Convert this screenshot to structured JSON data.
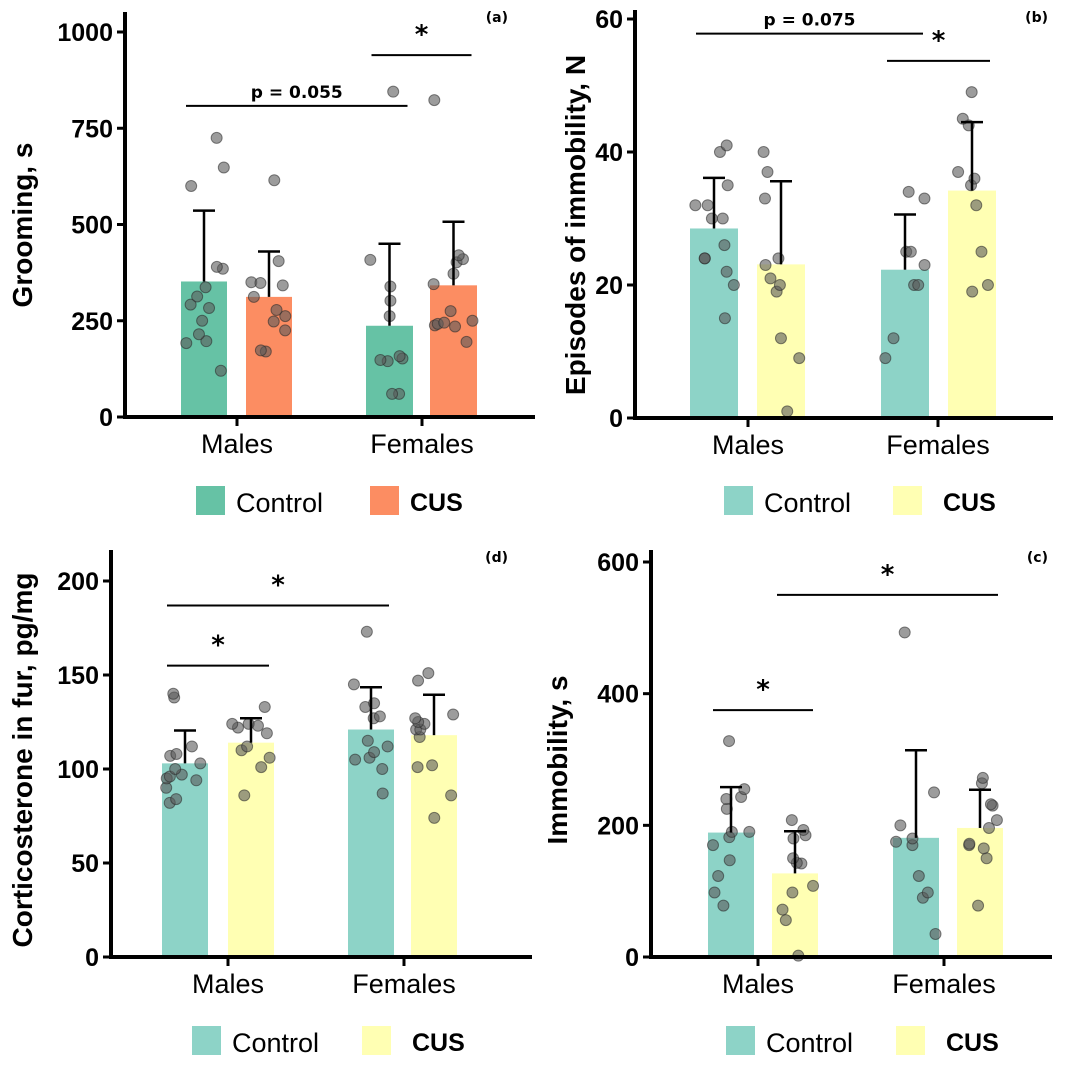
{
  "chart_data": [
    {
      "id": "a",
      "type": "bar",
      "panel_label": "(a)",
      "title": "",
      "xlabel": "",
      "ylabel": "Grooming, s",
      "ylim": [
        0,
        1050
      ],
      "yticks": [
        0,
        250,
        500,
        750,
        1000
      ],
      "categories": [
        "Males",
        "Females"
      ],
      "legend": [
        "Control",
        "CUS"
      ],
      "legend_placement": "bottom",
      "colors": {
        "Control": "#66c2a5",
        "CUS": "#fc8d62"
      },
      "series": [
        {
          "name": "Control",
          "values": [
            352,
            237
          ],
          "error_upper": [
            536,
            450
          ],
          "points": [
            [
              120,
              192,
              197,
              215,
              250,
              283,
              292,
              313,
              337,
              385,
              390,
              600,
              648,
              725
            ],
            [
              60,
              60,
              145,
              148,
              152,
              158,
              262,
              302,
              339,
              408,
              845
            ]
          ]
        },
        {
          "name": "CUS",
          "values": [
            312,
            342
          ],
          "error_upper": [
            430,
            507
          ],
          "points": [
            [
              170,
              173,
              225,
              248,
              262,
              278,
              312,
              342,
              350,
              348,
              405,
              615
            ],
            [
              195,
              235,
              238,
              242,
              245,
              250,
              275,
              345,
              372,
              402,
              410,
              420,
              823
            ]
          ]
        }
      ],
      "annotations": [
        {
          "text": "p = 0.055",
          "from": [
            "Males",
            "Control"
          ],
          "to": [
            "Females",
            "Control"
          ],
          "y": 808
        },
        {
          "text": "*",
          "from": [
            "Females",
            "Control"
          ],
          "to": [
            "Females",
            "CUS"
          ],
          "y": 940
        }
      ]
    },
    {
      "id": "b",
      "type": "bar",
      "panel_label": "(b)",
      "title": "",
      "xlabel": "",
      "ylabel": "Episodes of immobility, N",
      "ylim": [
        0,
        60
      ],
      "yticks": [
        0,
        20,
        40,
        60
      ],
      "categories": [
        "Males",
        "Females"
      ],
      "legend": [
        "Control",
        "CUS"
      ],
      "legend_placement": "bottom",
      "colors": {
        "Control": "#8dd3c7",
        "CUS": "#ffffb3"
      },
      "series": [
        {
          "name": "Control",
          "values": [
            28.5,
            22.3
          ],
          "error_upper": [
            36.1,
            30.6
          ],
          "points": [
            [
              15,
              20,
              22,
              24,
              24,
              26,
              30,
              30,
              32,
              32,
              35,
              40,
              41
            ],
            [
              9,
              12,
              20,
              20,
              23,
              25,
              25,
              33,
              34
            ]
          ]
        },
        {
          "name": "CUS",
          "values": [
            23.1,
            34.2
          ],
          "error_upper": [
            35.6,
            44.5
          ],
          "points": [
            [
              1,
              9,
              12,
              19,
              20,
              21,
              23,
              24,
              33,
              37,
              40
            ],
            [
              19,
              20,
              25,
              32,
              35,
              36,
              37,
              44,
              45,
              49
            ]
          ]
        }
      ],
      "annotations": [
        {
          "text": "p = 0.075",
          "from": [
            "Males",
            "Control"
          ],
          "to": [
            "Females",
            "Control"
          ],
          "y": 57.8
        },
        {
          "text": "*",
          "from": [
            "Females",
            "Control"
          ],
          "to": [
            "Females",
            "CUS"
          ],
          "y": 53.7
        }
      ]
    },
    {
      "id": "d",
      "type": "bar",
      "panel_label": "(d)",
      "title": "",
      "xlabel": "",
      "ylabel": "Corticosterone in fur, pg/mg",
      "ylim": [
        0,
        215
      ],
      "yticks": [
        0,
        50,
        100,
        150,
        200
      ],
      "categories": [
        "Males",
        "Females"
      ],
      "legend": [
        "Control",
        "CUS"
      ],
      "legend_placement": "bottom",
      "colors": {
        "Control": "#8dd3c7",
        "CUS": "#ffffb3"
      },
      "series": [
        {
          "name": "Control",
          "values": [
            103,
            121
          ],
          "error_upper": [
            120.5,
            143.5
          ],
          "points": [
            [
              82,
              84,
              90,
              94,
              95,
              96,
              97,
              100,
              103,
              107,
              108,
              112,
              138,
              140
            ],
            [
              87,
              100,
              105,
              106,
              109,
              112,
              115,
              127,
              128,
              133,
              135,
              145,
              173
            ]
          ]
        },
        {
          "name": "CUS",
          "values": [
            114,
            118
          ],
          "error_upper": [
            127,
            139.5
          ],
          "points": [
            [
              86,
              101,
              106,
              110,
              112,
              119,
              122,
              123,
              124,
              124,
              133
            ],
            [
              74,
              86,
              101,
              102,
              117,
              121,
              121,
              124,
              125,
              127,
              129,
              147,
              151
            ]
          ]
        }
      ],
      "annotations": [
        {
          "text": "*",
          "from": [
            "Males",
            "Control"
          ],
          "to": [
            "Females",
            "Control"
          ],
          "y": 187
        },
        {
          "text": "*",
          "from": [
            "Males",
            "Control"
          ],
          "to": [
            "Males",
            "CUS"
          ],
          "y": 155
        }
      ]
    },
    {
      "id": "c",
      "type": "bar",
      "panel_label": "(c)",
      "title": "",
      "xlabel": "",
      "ylabel": "Immobility, s",
      "ylim": [
        0,
        610
      ],
      "yticks": [
        0,
        200,
        400,
        600
      ],
      "categories": [
        "Males",
        "Females"
      ],
      "legend": [
        "Control",
        "CUS"
      ],
      "legend_placement": "bottom",
      "colors": {
        "Control": "#8dd3c7",
        "CUS": "#ffffb3"
      },
      "series": [
        {
          "name": "Control",
          "values": [
            189,
            181
          ],
          "error_upper": [
            258,
            314
          ],
          "points": [
            [
              78,
              98,
              123,
              147,
              170,
              182,
              190,
              190,
              225,
              240,
              243,
              255,
              328
            ],
            [
              35,
              90,
              98,
              123,
              170,
              175,
              180,
              200,
              250,
              493
            ]
          ]
        },
        {
          "name": "CUS",
          "values": [
            127,
            196
          ],
          "error_upper": [
            191,
            254
          ],
          "points": [
            [
              2,
              56,
              72,
              98,
              108,
              142,
              143,
              150,
              180,
              185,
              193,
              208
            ],
            [
              78,
              150,
              165,
              170,
              172,
              196,
              208,
              230,
              232,
              264,
              272
            ]
          ]
        }
      ],
      "annotations": [
        {
          "text": "*",
          "from": [
            "Males",
            "Control"
          ],
          "to": [
            "Males",
            "CUS"
          ],
          "y": 375
        },
        {
          "text": "*",
          "from": [
            "Males",
            "CUS"
          ],
          "to": [
            "Females",
            "CUS"
          ],
          "y": 550
        }
      ]
    }
  ]
}
